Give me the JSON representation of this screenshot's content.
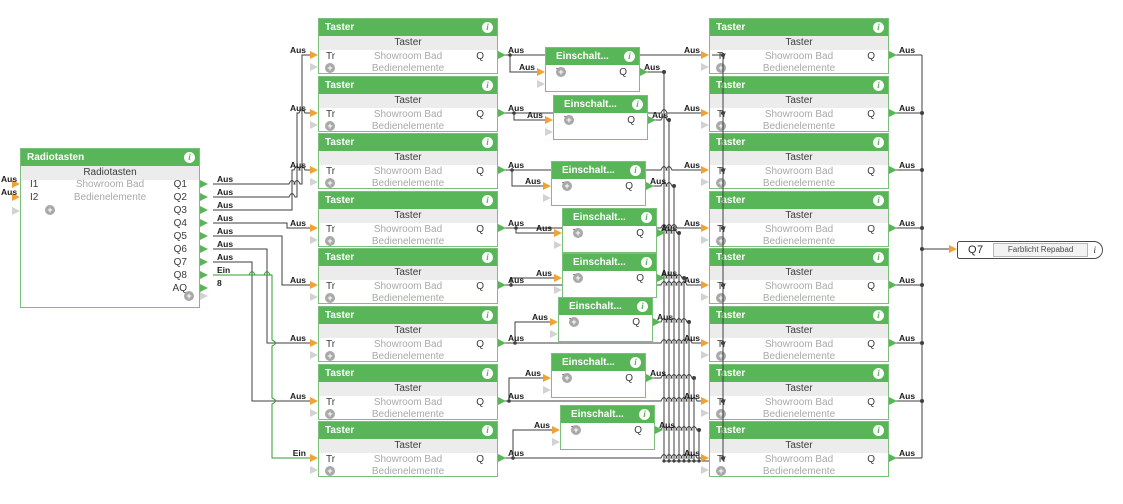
{
  "icons": {
    "info": "i",
    "plus": "+"
  },
  "colors": {
    "header_green": "#58b558",
    "band_gray": "#ececec",
    "room_text_gray": "#a9a9a9",
    "wire_dark": "#3f3f3f",
    "wire_active_green": "#2f9b2f",
    "connector_orange": "#f2a235",
    "connector_green": "#58b558",
    "connector_disabled_gray": "#d2d2d2"
  },
  "radiotasten": {
    "header": "Radiotasten",
    "title": "Radiotasten",
    "room": "Showroom Bad",
    "category": "Bedienelemente",
    "inputs": [
      {
        "id": "I1",
        "value": "Aus"
      },
      {
        "id": "I2",
        "value": "Aus"
      }
    ],
    "outputs": [
      {
        "id": "Q1",
        "value": "Aus"
      },
      {
        "id": "Q2",
        "value": "Aus"
      },
      {
        "id": "Q3",
        "value": "Aus"
      },
      {
        "id": "Q4",
        "value": "Aus"
      },
      {
        "id": "Q5",
        "value": "Aus"
      },
      {
        "id": "Q6",
        "value": "Aus"
      },
      {
        "id": "Q7",
        "value": "Aus"
      },
      {
        "id": "Q8",
        "value": "Ein"
      },
      {
        "id": "AQ",
        "value": "8"
      }
    ]
  },
  "taster_left": {
    "header": "Taster",
    "title": "Taster",
    "room": "Showroom Bad",
    "category": "Bedienelemente",
    "tr_port": "Tr",
    "q_port": "Q",
    "rows": [
      {
        "tr": "Aus",
        "q": "Aus"
      },
      {
        "tr": "Aus",
        "q": "Aus"
      },
      {
        "tr": "Aus",
        "q": "Aus"
      },
      {
        "tr": "Aus",
        "q": "Aus"
      },
      {
        "tr": "Aus",
        "q": "Aus"
      },
      {
        "tr": "Aus",
        "q": "Aus"
      },
      {
        "tr": "Aus",
        "q": "Aus"
      },
      {
        "tr": "Ein",
        "q": "Aus"
      }
    ]
  },
  "einschalt": {
    "header": "Einschalt...",
    "tr_port": "Tr",
    "q_port": "Q",
    "rows": [
      {
        "tr": "Aus",
        "q": "Aus"
      },
      {
        "tr": "Aus",
        "q": "Aus"
      },
      {
        "tr": "Aus",
        "q": "Aus"
      },
      {
        "tr": "Aus",
        "q": "Aus"
      },
      {
        "tr": "Aus",
        "q": "Aus"
      },
      {
        "tr": "Aus",
        "q": "Aus"
      },
      {
        "tr": "Aus",
        "q": "Aus"
      },
      {
        "tr": "Aus",
        "q": "Aus"
      }
    ]
  },
  "taster_right": {
    "header": "Taster",
    "title": "Taster",
    "room": "Showroom Bad",
    "category": "Bedienelemente",
    "tr_port": "Tr",
    "q_port": "Q",
    "rows": [
      {
        "tr": "Aus",
        "q": "Aus"
      },
      {
        "tr": "Aus",
        "q": "Aus"
      },
      {
        "tr": "Aus",
        "q": "Aus"
      },
      {
        "tr": "Aus",
        "q": "Aus"
      },
      {
        "tr": "Aus",
        "q": "Aus"
      },
      {
        "tr": "Aus",
        "q": "Aus"
      },
      {
        "tr": "Aus",
        "q": "Aus"
      },
      {
        "tr": "Aus",
        "q": "Aus"
      }
    ]
  },
  "q7_output": {
    "id": "Q7",
    "label": "Farblicht Repabad"
  }
}
